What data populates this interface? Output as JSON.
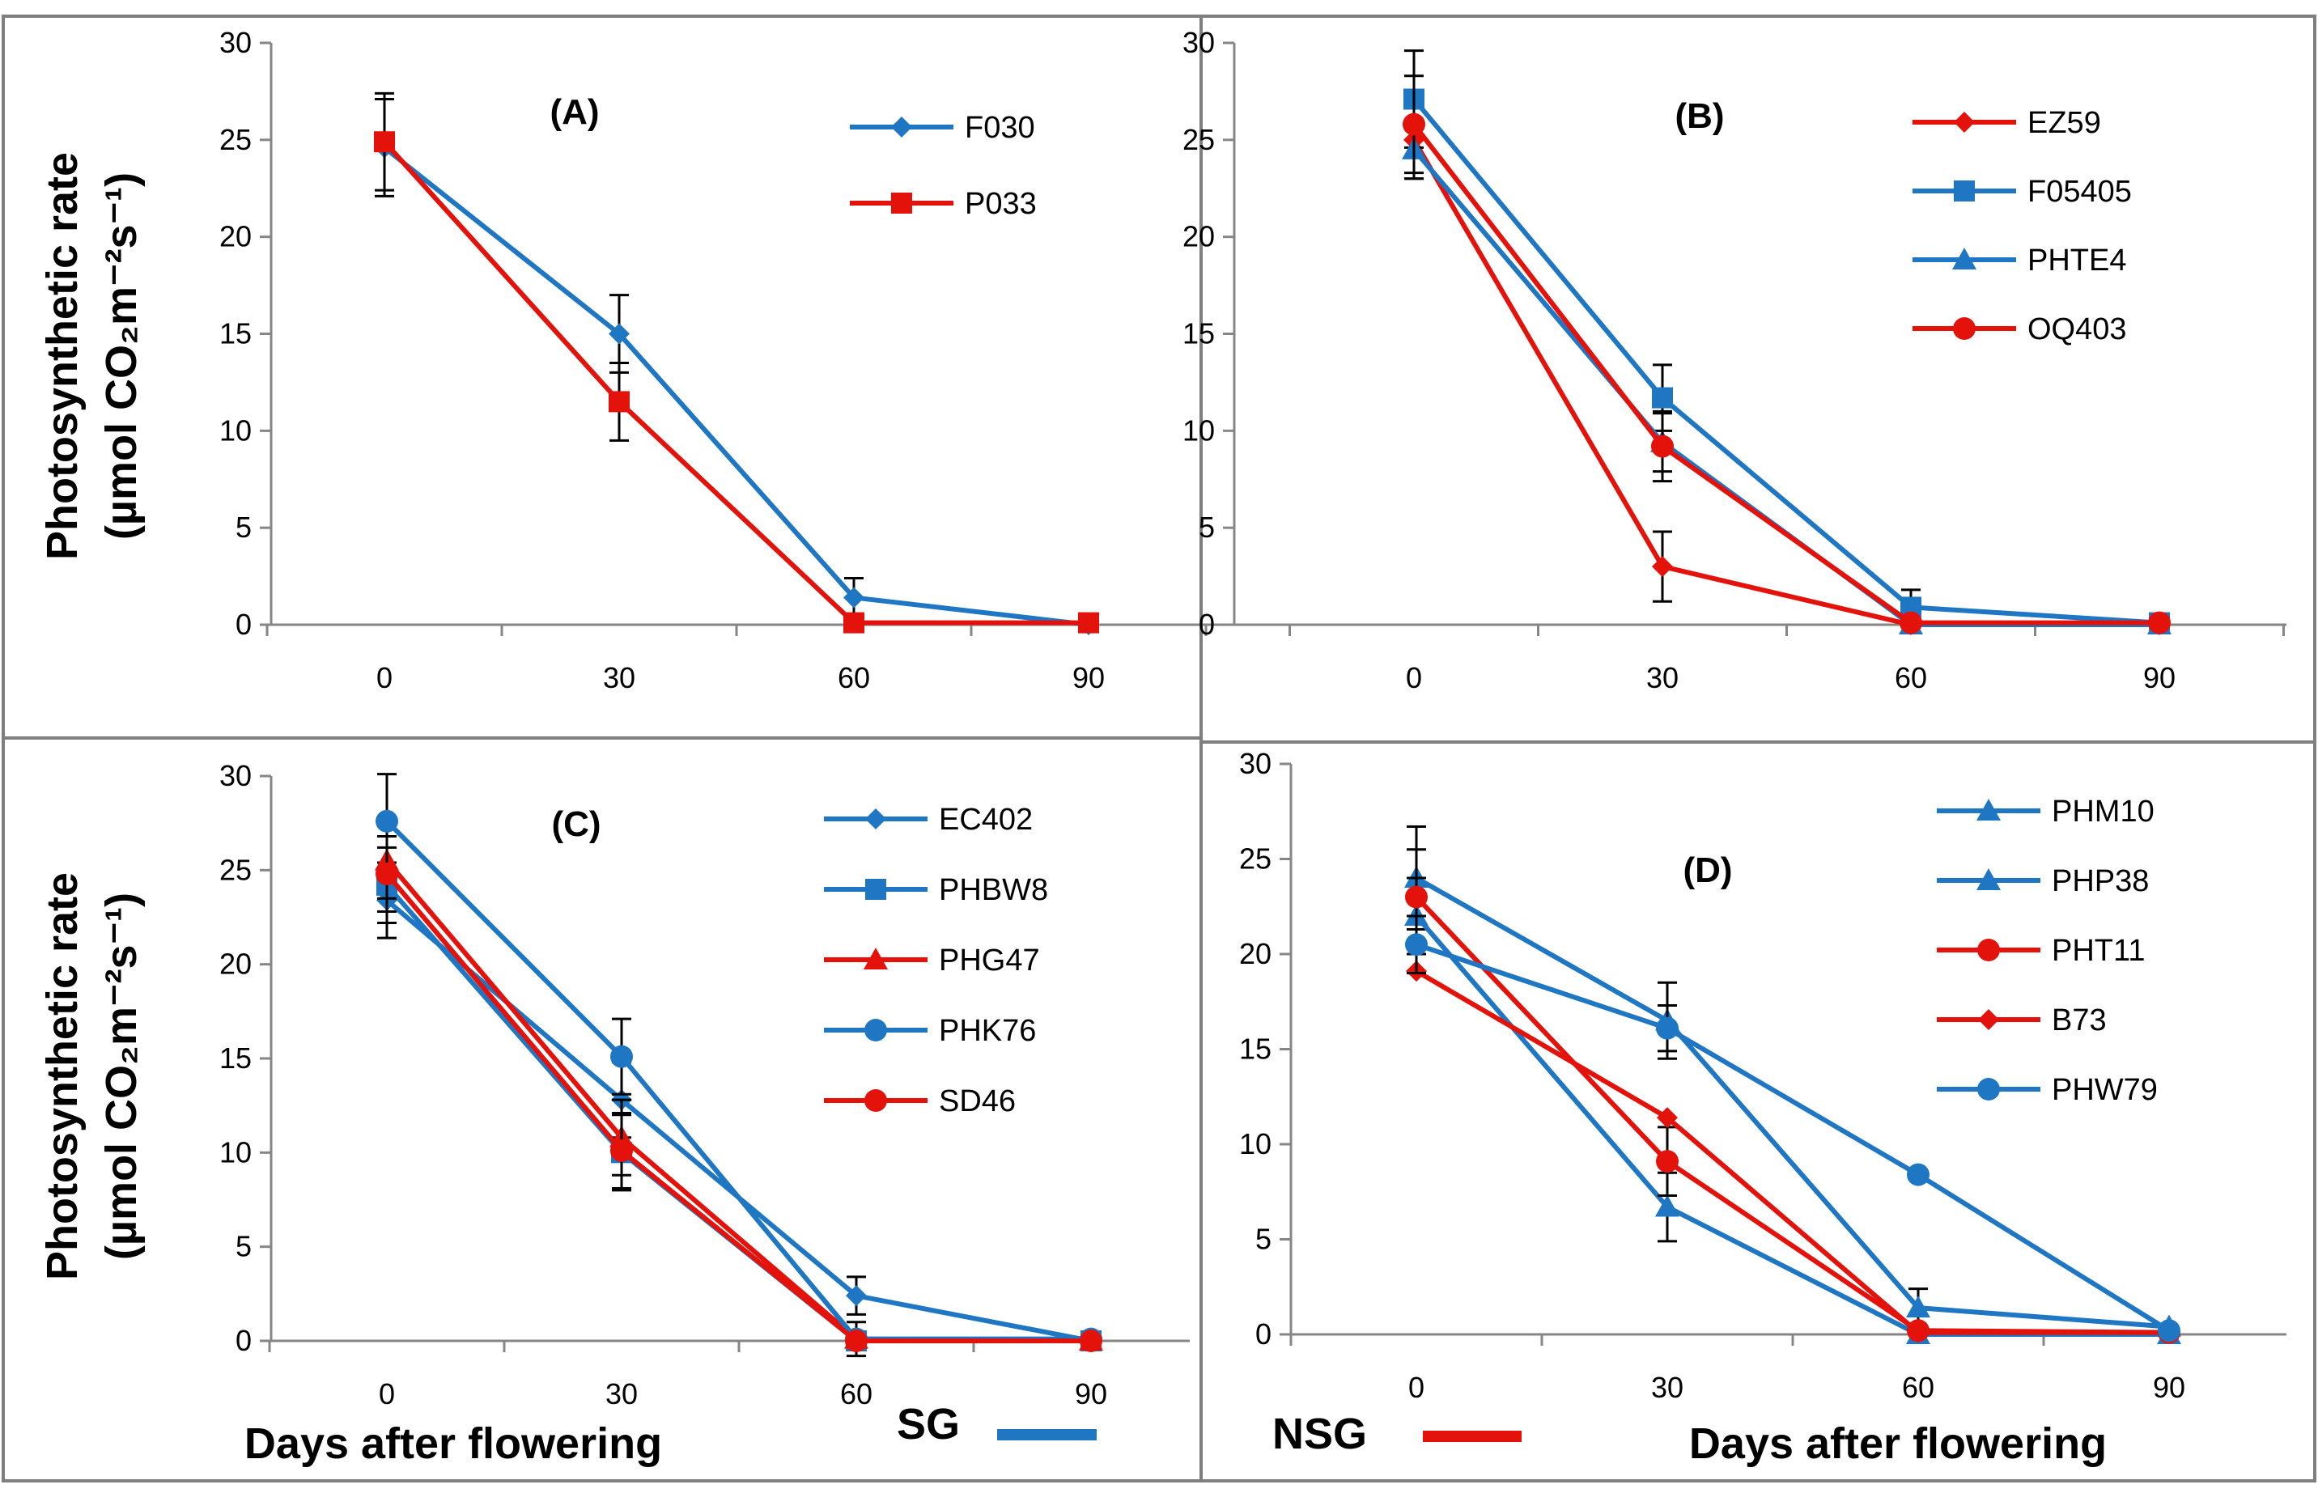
{
  "figure": {
    "ylabel_line1": "Photosynthetic rate",
    "ylabel_line2": "(µmol CO₂m⁻²s⁻¹)",
    "xlabel": "Days after flowering",
    "sg_label": "SG",
    "nsg_label": "NSG",
    "colors": {
      "sg": "#1f77c4",
      "nsg": "#e3120b",
      "axis": "#868686",
      "frame": "#7f7f7f"
    }
  },
  "chart_data": [
    {
      "type": "line",
      "panel": "(A)",
      "x": [
        0,
        30,
        60,
        90
      ],
      "xticks": [
        "0",
        "30",
        "60",
        "90"
      ],
      "ylim": [
        0,
        30
      ],
      "yticks": [
        "0",
        "5",
        "10",
        "15",
        "20",
        "25",
        "30"
      ],
      "xlabel": "",
      "series": [
        {
          "name": "F030",
          "group": "SG",
          "marker": "diamond",
          "values": [
            24.6,
            15.0,
            1.4,
            0.0
          ],
          "errors": [
            2.5,
            2.0,
            1.0,
            0.0
          ]
        },
        {
          "name": "P033",
          "group": "NSG",
          "marker": "square",
          "values": [
            24.9,
            11.5,
            0.1,
            0.1
          ],
          "errors": [
            2.5,
            2.0,
            0.0,
            0.0
          ]
        }
      ]
    },
    {
      "type": "line",
      "panel": "(B)",
      "x": [
        0,
        30,
        60,
        90
      ],
      "xticks": [
        "0",
        "30",
        "60",
        "90"
      ],
      "ylim": [
        0,
        30
      ],
      "yticks": [
        "0",
        "5",
        "10",
        "15",
        "20",
        "25",
        "30"
      ],
      "xlabel": "",
      "series": [
        {
          "name": "EZ59",
          "group": "NSG",
          "marker": "diamond",
          "values": [
            25.0,
            3.0,
            0.0,
            0.0
          ],
          "errors": [
            2.0,
            1.8,
            0.0,
            0.0
          ]
        },
        {
          "name": "F05405",
          "group": "SG",
          "marker": "square",
          "values": [
            27.1,
            11.7,
            0.9,
            0.1
          ],
          "errors": [
            2.5,
            1.7,
            0.9,
            0.0
          ]
        },
        {
          "name": "PHTE4",
          "group": "SG",
          "marker": "triangle",
          "values": [
            24.5,
            9.4,
            0.0,
            0.0
          ],
          "errors": [
            1.5,
            1.5,
            0.0,
            0.0
          ]
        },
        {
          "name": "OQ403",
          "group": "NSG",
          "marker": "circle",
          "values": [
            25.8,
            9.2,
            0.1,
            0.1
          ],
          "errors": [
            2.5,
            1.8,
            0.0,
            0.0
          ]
        }
      ]
    },
    {
      "type": "line",
      "panel": "(C)",
      "x": [
        0,
        30,
        60,
        90
      ],
      "xticks": [
        "0",
        "30",
        "60",
        "90"
      ],
      "ylim": [
        0,
        30
      ],
      "yticks": [
        "0",
        "5",
        "10",
        "15",
        "20",
        "25",
        "30"
      ],
      "xlabel": "Days after flowering",
      "series": [
        {
          "name": "EC402",
          "group": "SG",
          "marker": "diamond",
          "values": [
            23.4,
            12.8,
            2.4,
            0.0
          ],
          "errors": [
            2.0,
            2.0,
            1.0,
            0.0
          ]
        },
        {
          "name": "PHBW8",
          "group": "SG",
          "marker": "square",
          "values": [
            24.2,
            10.0,
            0.0,
            0.0
          ],
          "errors": [
            2.0,
            2.0,
            0.0,
            0.0
          ]
        },
        {
          "name": "PHG47",
          "group": "NSG",
          "marker": "triangle",
          "values": [
            25.5,
            10.8,
            0.1,
            0.0
          ],
          "errors": [
            2.0,
            2.0,
            0.0,
            0.0
          ]
        },
        {
          "name": "PHK76",
          "group": "SG",
          "marker": "circle",
          "values": [
            27.6,
            15.1,
            0.1,
            0.1
          ],
          "errors": [
            2.5,
            2.0,
            0.9,
            0.0
          ]
        },
        {
          "name": "SD46",
          "group": "NSG",
          "marker": "circle",
          "values": [
            24.8,
            10.1,
            0.0,
            0.0
          ],
          "errors": [
            2.0,
            2.0,
            0.0,
            0.0
          ]
        }
      ]
    },
    {
      "type": "line",
      "panel": "(D)",
      "x": [
        0,
        30,
        60,
        90
      ],
      "xticks": [
        "0",
        "30",
        "60",
        "90"
      ],
      "ylim": [
        0,
        30
      ],
      "yticks": [
        "0",
        "5",
        "10",
        "15",
        "20",
        "25",
        "30"
      ],
      "xlabel": "Days after flowering",
      "series": [
        {
          "name": "PHM10",
          "group": "SG",
          "marker": "triangle",
          "values": [
            24.0,
            16.5,
            1.4,
            0.4
          ],
          "errors": [
            2.7,
            2.0,
            1.0,
            0.0
          ]
        },
        {
          "name": "PHP38",
          "group": "SG",
          "marker": "triangle",
          "values": [
            22.0,
            6.7,
            0.0,
            0.0
          ],
          "errors": [
            2.0,
            1.8,
            0.0,
            0.0
          ]
        },
        {
          "name": "PHT11",
          "group": "NSG",
          "marker": "circle",
          "values": [
            23.0,
            9.1,
            0.2,
            0.1
          ],
          "errors": [
            2.5,
            1.8,
            0.0,
            0.0
          ]
        },
        {
          "name": "B73",
          "group": "NSG",
          "marker": "diamond",
          "values": [
            19.1,
            11.4,
            0.1,
            0.1
          ],
          "errors": [
            0.0,
            0.0,
            0.0,
            0.0
          ]
        },
        {
          "name": "PHW79",
          "group": "SG",
          "marker": "circle",
          "values": [
            20.5,
            16.1,
            8.4,
            0.2
          ],
          "errors": [
            1.5,
            1.2,
            0.0,
            0.0
          ]
        }
      ]
    }
  ]
}
